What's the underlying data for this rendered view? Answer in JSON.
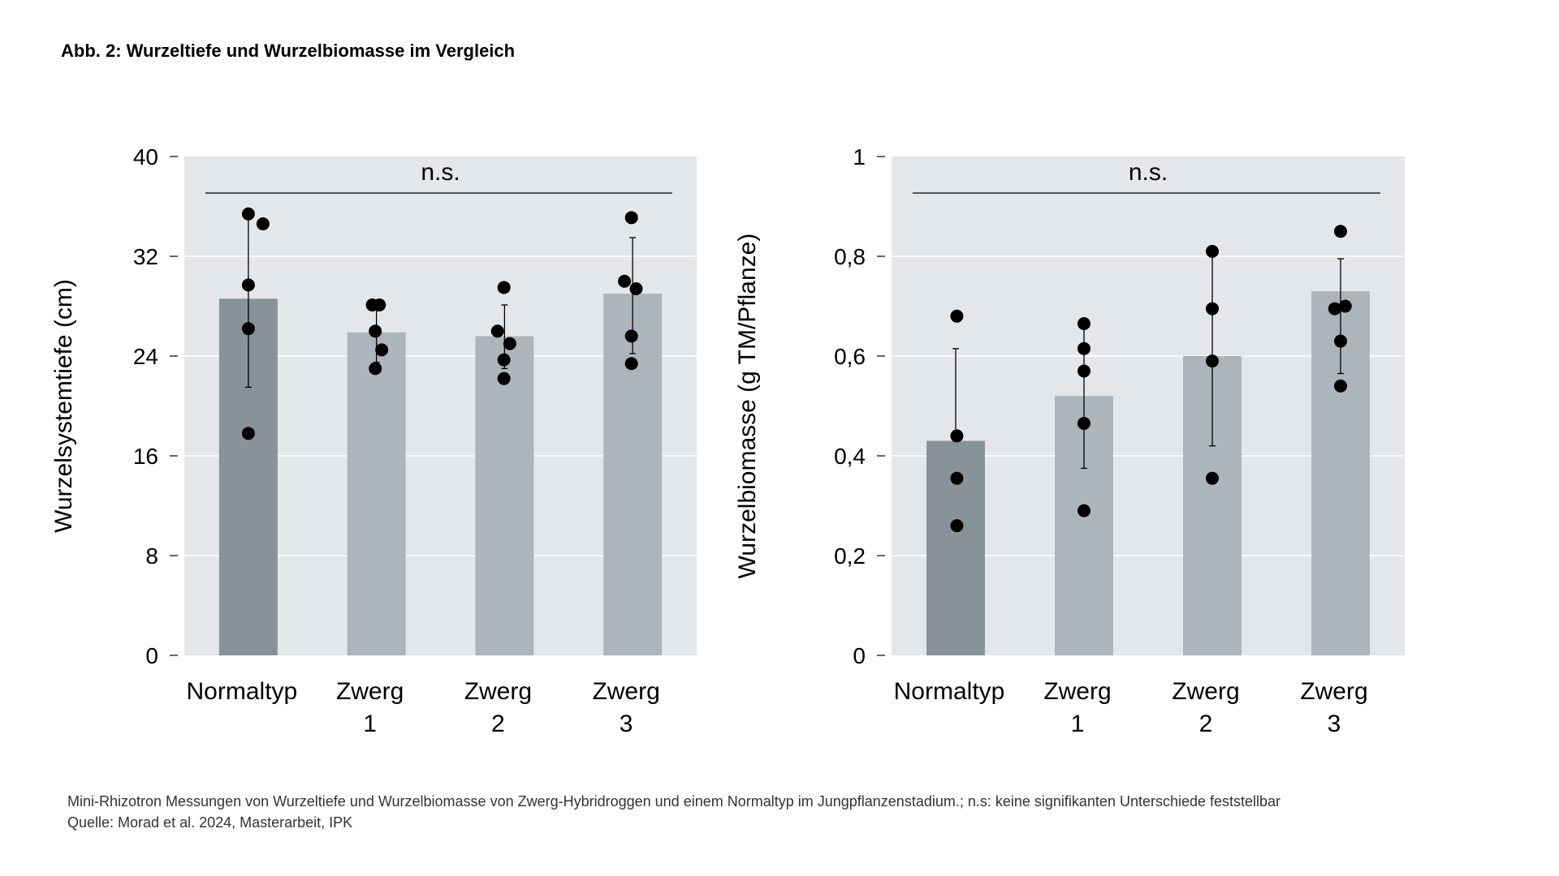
{
  "figure": {
    "title": "Abb. 2: Wurzeltiefe und Wurzelbiomasse im Vergleich",
    "caption": "Mini-Rhizotron Messungen von Wurzeltiefe und Wurzelbiomasse von Zwerg-Hybridroggen und einem Normaltyp im Jungpflanzenstadium.; n.s: keine signifikanten Unterschiede feststellbar",
    "source": "Quelle: Morad et al. 2024, Masterarbeit, IPK"
  },
  "colors": {
    "panel_bg": "#e3e7ea",
    "bar_normal": "#889399",
    "bar_zwerg": "#adb5bb",
    "points": "#000000",
    "grid": "#ffffff"
  },
  "chart_data": [
    {
      "type": "bar",
      "categories": [
        [
          "Normaltyp"
        ],
        [
          "Zwerg",
          "1"
        ],
        [
          "Zwerg",
          "2"
        ],
        [
          "Zwerg",
          "3"
        ]
      ],
      "values": [
        28.6,
        25.9,
        25.6,
        29.0
      ],
      "error_low": [
        21.5,
        23.5,
        23.0,
        24.2
      ],
      "error_high": [
        35.2,
        28.2,
        28.1,
        33.5
      ],
      "points": [
        [
          [
            0.0,
            35.4
          ],
          [
            0.25,
            34.6
          ],
          [
            0.0,
            29.7
          ],
          [
            0.0,
            26.2
          ],
          [
            0.0,
            17.8
          ]
        ],
        [
          [
            -0.07,
            28.1
          ],
          [
            0.05,
            28.1
          ],
          [
            -0.02,
            26.0
          ],
          [
            0.09,
            24.5
          ],
          [
            -0.02,
            23.0
          ]
        ],
        [
          [
            -0.12,
            26.0
          ],
          [
            0.09,
            25.0
          ],
          [
            -0.01,
            23.7
          ],
          [
            -0.01,
            22.2
          ],
          [
            -0.01,
            29.5
          ]
        ],
        [
          [
            -0.14,
            30.0
          ],
          [
            0.06,
            29.4
          ],
          [
            -0.02,
            35.1
          ],
          [
            -0.02,
            25.6
          ],
          [
            -0.02,
            23.4
          ]
        ]
      ],
      "bracket_label": "n.s.",
      "ylabel": "Wurzelsystemtiefe (cm)",
      "ylim": [
        0,
        40
      ],
      "yticks": [
        0,
        8,
        16,
        24,
        32,
        40
      ],
      "ytick_labels": [
        "0",
        "8",
        "16",
        "24",
        "32",
        "40"
      ],
      "grid": true
    },
    {
      "type": "bar",
      "categories": [
        [
          "Normaltyp"
        ],
        [
          "Zwerg",
          "1"
        ],
        [
          "Zwerg",
          "2"
        ],
        [
          "Zwerg",
          "3"
        ]
      ],
      "values": [
        0.43,
        0.52,
        0.6,
        0.73
      ],
      "error_low": [
        0.43,
        0.375,
        0.42,
        0.565
      ],
      "error_high": [
        0.615,
        0.66,
        0.8,
        0.795
      ],
      "points": [
        [
          [
            0.02,
            0.68
          ],
          [
            0.02,
            0.44
          ],
          [
            0.02,
            0.355
          ],
          [
            0.02,
            0.26
          ]
        ],
        [
          [
            0.0,
            0.665
          ],
          [
            0.0,
            0.615
          ],
          [
            0.0,
            0.57
          ],
          [
            0.0,
            0.465
          ],
          [
            0.0,
            0.29
          ]
        ],
        [
          [
            0.0,
            0.81
          ],
          [
            0.0,
            0.695
          ],
          [
            0.0,
            0.59
          ],
          [
            0.0,
            0.355
          ]
        ],
        [
          [
            0.0,
            0.85
          ],
          [
            -0.1,
            0.695
          ],
          [
            0.08,
            0.7
          ],
          [
            0.0,
            0.63
          ],
          [
            0.0,
            0.54
          ]
        ]
      ],
      "bracket_label": "n.s.",
      "ylabel": "Wurzelbiomasse (g TM/Pflanze)",
      "ylim": [
        0,
        1
      ],
      "yticks": [
        0,
        0.2,
        0.4,
        0.6,
        0.8,
        1
      ],
      "ytick_labels": [
        "0",
        "0,2",
        "0,4",
        "0,6",
        "0,8",
        "1"
      ],
      "grid": true
    }
  ]
}
